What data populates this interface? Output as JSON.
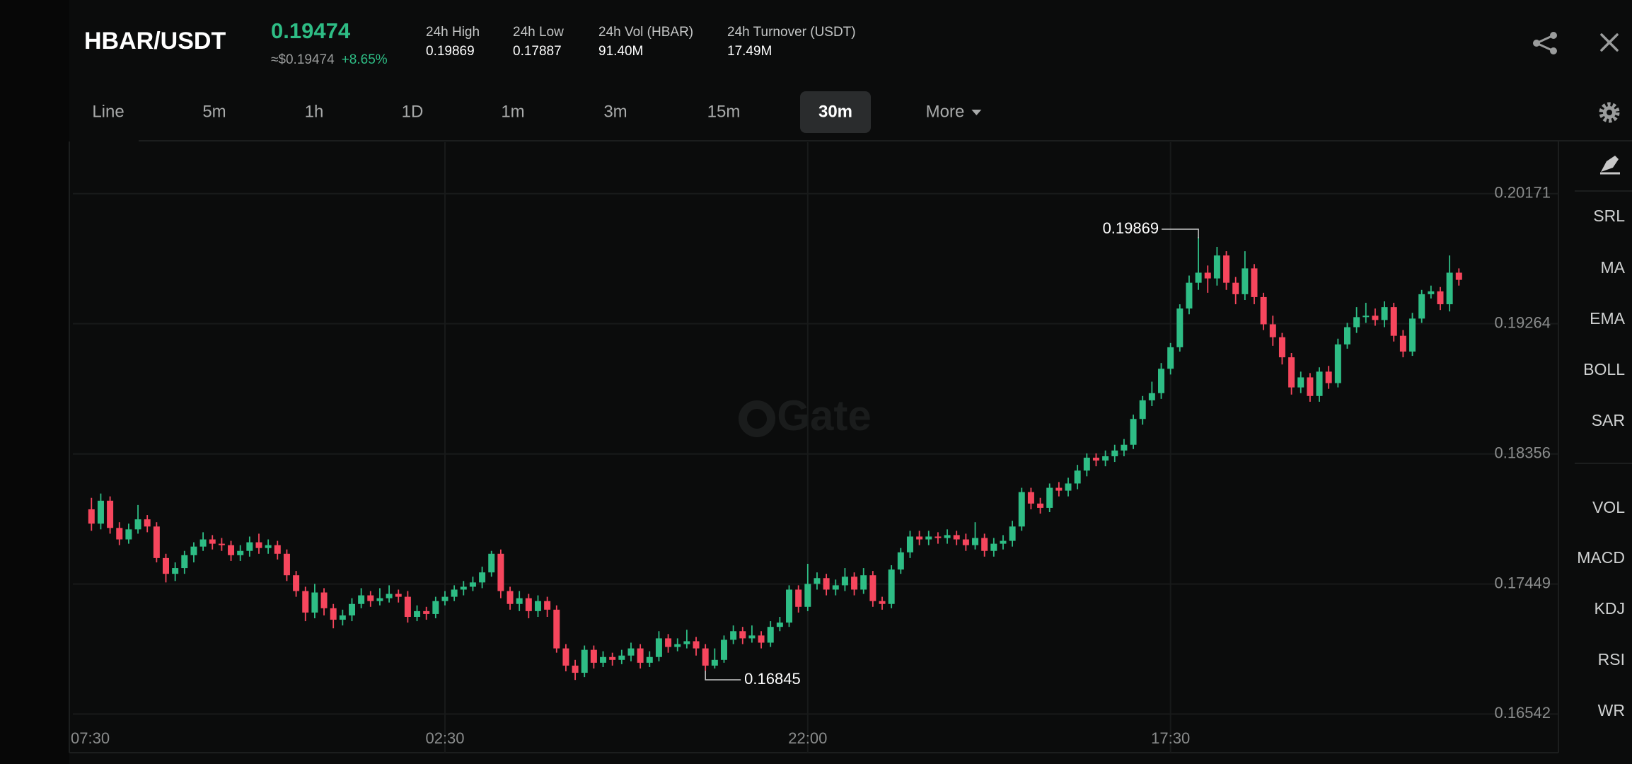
{
  "header": {
    "pair": "HBAR/USDT",
    "price": "0.19474",
    "price_usd": "≈$0.19474",
    "change": "+8.65%",
    "stats": [
      {
        "label": "24h High",
        "value": "0.19869"
      },
      {
        "label": "24h Low",
        "value": "0.17887"
      },
      {
        "label": "24h Vol (HBAR)",
        "value": "91.40M"
      },
      {
        "label": "24h Turnover (USDT)",
        "value": "17.49M"
      }
    ]
  },
  "tabs": [
    "Line",
    "5m",
    "1h",
    "1D",
    "1m",
    "3m",
    "15m",
    "30m",
    "More"
  ],
  "selected_tab": "30m",
  "indicators_main": [
    "SRL",
    "MA",
    "EMA",
    "BOLL",
    "SAR"
  ],
  "indicators_sub": [
    "VOL",
    "MACD",
    "KDJ",
    "RSI",
    "WR"
  ],
  "chart_data": {
    "type": "candlestick",
    "watermark": "Gate",
    "up_color": "#2ebd85",
    "down_color": "#f6465d",
    "ylim": [
      0.1648,
      0.2053
    ],
    "yticks": [
      0.20171,
      0.19264,
      0.18356,
      0.17449,
      0.16542
    ],
    "grid": true,
    "xlim": [
      0,
      159.7
    ],
    "xticks": [
      {
        "value": 2,
        "label": "07:30"
      },
      {
        "value": 40,
        "label": "02:30"
      },
      {
        "value": 79,
        "label": "22:00"
      },
      {
        "value": 118,
        "label": "17:30"
      }
    ],
    "high_label": 0.19869,
    "low_label": 0.16845,
    "candles": [
      [
        0.1797,
        0.1805,
        0.1782,
        0.1787
      ],
      [
        0.1787,
        0.1808,
        0.1783,
        0.1803
      ],
      [
        0.1803,
        0.1806,
        0.178,
        0.1784
      ],
      [
        0.1784,
        0.1788,
        0.1772,
        0.1776
      ],
      [
        0.1776,
        0.1787,
        0.1773,
        0.1783
      ],
      [
        0.1783,
        0.18,
        0.178,
        0.179
      ],
      [
        0.179,
        0.1793,
        0.1781,
        0.1785
      ],
      [
        0.1785,
        0.1788,
        0.176,
        0.1763
      ],
      [
        0.1763,
        0.1766,
        0.1746,
        0.1752
      ],
      [
        0.1752,
        0.176,
        0.1747,
        0.1756
      ],
      [
        0.1756,
        0.1768,
        0.1752,
        0.1765
      ],
      [
        0.1765,
        0.1774,
        0.176,
        0.1771
      ],
      [
        0.1771,
        0.1781,
        0.1768,
        0.1776
      ],
      [
        0.1776,
        0.1779,
        0.1769,
        0.1773
      ],
      [
        0.1773,
        0.1777,
        0.1768,
        0.1772
      ],
      [
        0.1772,
        0.1775,
        0.1761,
        0.1765
      ],
      [
        0.1765,
        0.1772,
        0.1761,
        0.1768
      ],
      [
        0.1768,
        0.1778,
        0.1764,
        0.1774
      ],
      [
        0.1774,
        0.178,
        0.1766,
        0.177
      ],
      [
        0.177,
        0.1776,
        0.1766,
        0.1772
      ],
      [
        0.1772,
        0.1775,
        0.1762,
        0.1766
      ],
      [
        0.1766,
        0.1769,
        0.1747,
        0.1751
      ],
      [
        0.1751,
        0.1754,
        0.1736,
        0.174
      ],
      [
        0.174,
        0.1743,
        0.1719,
        0.1725
      ],
      [
        0.1725,
        0.1745,
        0.1721,
        0.1739
      ],
      [
        0.1739,
        0.1742,
        0.1723,
        0.1728
      ],
      [
        0.1728,
        0.1731,
        0.1714,
        0.172
      ],
      [
        0.172,
        0.1727,
        0.1716,
        0.1723
      ],
      [
        0.1723,
        0.1735,
        0.1719,
        0.1731
      ],
      [
        0.1731,
        0.1742,
        0.1728,
        0.1737
      ],
      [
        0.1737,
        0.174,
        0.1729,
        0.1733
      ],
      [
        0.1733,
        0.1742,
        0.173,
        0.1735
      ],
      [
        0.1735,
        0.1744,
        0.1732,
        0.1738
      ],
      [
        0.1738,
        0.1741,
        0.1732,
        0.1736
      ],
      [
        0.1736,
        0.174,
        0.1718,
        0.1722
      ],
      [
        0.1722,
        0.173,
        0.1719,
        0.1726
      ],
      [
        0.1726,
        0.1729,
        0.172,
        0.1724
      ],
      [
        0.1724,
        0.1736,
        0.1721,
        0.1733
      ],
      [
        0.1733,
        0.174,
        0.173,
        0.1736
      ],
      [
        0.1736,
        0.1744,
        0.1733,
        0.1741
      ],
      [
        0.1741,
        0.1747,
        0.1737,
        0.1743
      ],
      [
        0.1743,
        0.175,
        0.174,
        0.1746
      ],
      [
        0.1746,
        0.1757,
        0.1742,
        0.1753
      ],
      [
        0.1753,
        0.1768,
        0.175,
        0.1766
      ],
      [
        0.1766,
        0.1769,
        0.1735,
        0.174
      ],
      [
        0.174,
        0.1743,
        0.1727,
        0.1731
      ],
      [
        0.1731,
        0.174,
        0.1726,
        0.1735
      ],
      [
        0.1735,
        0.1738,
        0.1721,
        0.1726
      ],
      [
        0.1726,
        0.1737,
        0.1722,
        0.1733
      ],
      [
        0.1733,
        0.1736,
        0.1722,
        0.1727
      ],
      [
        0.1727,
        0.173,
        0.1697,
        0.17
      ],
      [
        0.17,
        0.1703,
        0.1684,
        0.1688
      ],
      [
        0.1688,
        0.1692,
        0.1678,
        0.1683
      ],
      [
        0.1683,
        0.1702,
        0.168,
        0.1699
      ],
      [
        0.1699,
        0.1702,
        0.1686,
        0.169
      ],
      [
        0.169,
        0.1698,
        0.1687,
        0.1694
      ],
      [
        0.1694,
        0.1697,
        0.1688,
        0.1692
      ],
      [
        0.1692,
        0.1699,
        0.1689,
        0.1695
      ],
      [
        0.1695,
        0.1704,
        0.1691,
        0.17
      ],
      [
        0.17,
        0.1703,
        0.1686,
        0.169
      ],
      [
        0.169,
        0.1698,
        0.1687,
        0.1694
      ],
      [
        0.1694,
        0.1712,
        0.1691,
        0.1707
      ],
      [
        0.1707,
        0.171,
        0.1697,
        0.1701
      ],
      [
        0.1701,
        0.1707,
        0.1698,
        0.1703
      ],
      [
        0.1703,
        0.1713,
        0.17,
        0.1705
      ],
      [
        0.1705,
        0.1708,
        0.1695,
        0.17
      ],
      [
        0.17,
        0.1703,
        0.16845,
        0.1688
      ],
      [
        0.1688,
        0.17,
        0.1686,
        0.1692
      ],
      [
        0.1692,
        0.1709,
        0.169,
        0.1706
      ],
      [
        0.1706,
        0.1716,
        0.1703,
        0.1712
      ],
      [
        0.1712,
        0.1715,
        0.1703,
        0.1707
      ],
      [
        0.1707,
        0.1716,
        0.1704,
        0.1709
      ],
      [
        0.1709,
        0.1712,
        0.17,
        0.1704
      ],
      [
        0.1704,
        0.1719,
        0.1701,
        0.1715
      ],
      [
        0.1715,
        0.1722,
        0.1712,
        0.1718
      ],
      [
        0.1718,
        0.1744,
        0.1715,
        0.1741
      ],
      [
        0.1741,
        0.1744,
        0.1725,
        0.1729
      ],
      [
        0.1729,
        0.1759,
        0.1726,
        0.1745
      ],
      [
        0.1745,
        0.1753,
        0.1741,
        0.1749
      ],
      [
        0.1749,
        0.1752,
        0.1737,
        0.1741
      ],
      [
        0.1741,
        0.1748,
        0.1737,
        0.1744
      ],
      [
        0.1744,
        0.1756,
        0.174,
        0.175
      ],
      [
        0.175,
        0.1753,
        0.1737,
        0.1741
      ],
      [
        0.1741,
        0.1756,
        0.1738,
        0.1751
      ],
      [
        0.1751,
        0.1754,
        0.1729,
        0.1733
      ],
      [
        0.1733,
        0.1736,
        0.1727,
        0.1731
      ],
      [
        0.1731,
        0.1758,
        0.1728,
        0.1755
      ],
      [
        0.1755,
        0.177,
        0.1752,
        0.1767
      ],
      [
        0.1767,
        0.1782,
        0.1763,
        0.1778
      ],
      [
        0.1778,
        0.1782,
        0.1772,
        0.1776
      ],
      [
        0.1776,
        0.1782,
        0.1772,
        0.1778
      ],
      [
        0.1778,
        0.1781,
        0.1773,
        0.1777
      ],
      [
        0.1777,
        0.1783,
        0.1773,
        0.1779
      ],
      [
        0.1779,
        0.1782,
        0.1772,
        0.1776
      ],
      [
        0.1776,
        0.178,
        0.1768,
        0.1772
      ],
      [
        0.1772,
        0.1788,
        0.1769,
        0.1777
      ],
      [
        0.1777,
        0.178,
        0.1764,
        0.1768
      ],
      [
        0.1768,
        0.1777,
        0.1764,
        0.1773
      ],
      [
        0.1773,
        0.1779,
        0.1769,
        0.1775
      ],
      [
        0.1775,
        0.1789,
        0.1771,
        0.1785
      ],
      [
        0.1785,
        0.1812,
        0.1782,
        0.1809
      ],
      [
        0.1809,
        0.1812,
        0.1797,
        0.1801
      ],
      [
        0.1801,
        0.1805,
        0.1794,
        0.1798
      ],
      [
        0.1798,
        0.1815,
        0.1795,
        0.1812
      ],
      [
        0.1812,
        0.1816,
        0.1806,
        0.181
      ],
      [
        0.181,
        0.1819,
        0.1806,
        0.1815
      ],
      [
        0.1815,
        0.1828,
        0.1811,
        0.1824
      ],
      [
        0.1824,
        0.1836,
        0.182,
        0.1833
      ],
      [
        0.1833,
        0.1836,
        0.1827,
        0.1831
      ],
      [
        0.1831,
        0.1838,
        0.1827,
        0.1834
      ],
      [
        0.1834,
        0.1842,
        0.183,
        0.1838
      ],
      [
        0.1838,
        0.1846,
        0.1834,
        0.1842
      ],
      [
        0.1842,
        0.1863,
        0.1839,
        0.186
      ],
      [
        0.186,
        0.1876,
        0.1856,
        0.1873
      ],
      [
        0.1873,
        0.1886,
        0.1869,
        0.1878
      ],
      [
        0.1878,
        0.1899,
        0.1874,
        0.1895
      ],
      [
        0.1895,
        0.1913,
        0.1891,
        0.191
      ],
      [
        0.191,
        0.194,
        0.1907,
        0.1937
      ],
      [
        0.1937,
        0.196,
        0.1933,
        0.1955
      ],
      [
        0.1955,
        0.19869,
        0.195,
        0.1962
      ],
      [
        0.1962,
        0.1967,
        0.1948,
        0.1958
      ],
      [
        0.1958,
        0.198,
        0.1953,
        0.1974
      ],
      [
        0.1974,
        0.1977,
        0.195,
        0.1955
      ],
      [
        0.1955,
        0.1959,
        0.194,
        0.1947
      ],
      [
        0.1947,
        0.1977,
        0.1943,
        0.1965
      ],
      [
        0.1965,
        0.1968,
        0.194,
        0.1945
      ],
      [
        0.1945,
        0.1948,
        0.1922,
        0.1926
      ],
      [
        0.1926,
        0.1932,
        0.1911,
        0.1917
      ],
      [
        0.1917,
        0.192,
        0.1898,
        0.1903
      ],
      [
        0.1903,
        0.1906,
        0.1877,
        0.1882
      ],
      [
        0.1882,
        0.1893,
        0.1878,
        0.1889
      ],
      [
        0.1889,
        0.1892,
        0.1872,
        0.1876
      ],
      [
        0.1876,
        0.1896,
        0.1872,
        0.1893
      ],
      [
        0.1893,
        0.1897,
        0.1881,
        0.1885
      ],
      [
        0.1885,
        0.1916,
        0.1882,
        0.1912
      ],
      [
        0.1912,
        0.1927,
        0.1909,
        0.1924
      ],
      [
        0.1924,
        0.1938,
        0.192,
        0.1931
      ],
      [
        0.1931,
        0.1941,
        0.1927,
        0.1932
      ],
      [
        0.1932,
        0.1937,
        0.1925,
        0.1929
      ],
      [
        0.1929,
        0.1942,
        0.1924,
        0.1938
      ],
      [
        0.1938,
        0.1941,
        0.1914,
        0.1918
      ],
      [
        0.1918,
        0.1922,
        0.1903,
        0.1907
      ],
      [
        0.1907,
        0.1934,
        0.1904,
        0.193
      ],
      [
        0.193,
        0.195,
        0.1927,
        0.1947
      ],
      [
        0.1947,
        0.1953,
        0.1944,
        0.1949
      ],
      [
        0.1949,
        0.1952,
        0.1936,
        0.194
      ],
      [
        0.194,
        0.1974,
        0.1935,
        0.1962
      ],
      [
        0.1962,
        0.1965,
        0.1953,
        0.1957
      ]
    ]
  }
}
